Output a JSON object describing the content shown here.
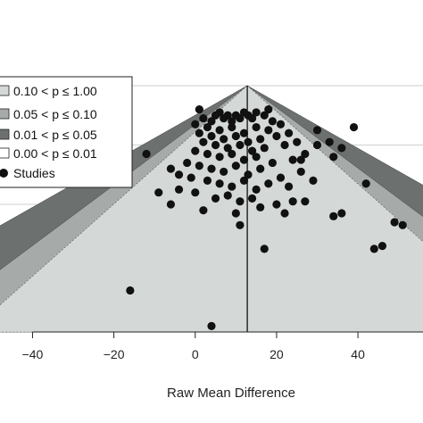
{
  "chart_data": {
    "type": "scatter",
    "subtype": "contour-enhanced funnel plot",
    "title": "",
    "xlabel": "Raw Mean Difference",
    "ylabel": "",
    "xlim": [
      -48,
      56
    ],
    "x_ticks": [
      "−40",
      "−20",
      "0",
      "20",
      "40"
    ],
    "x_tick_values": [
      -40,
      -20,
      0,
      20,
      40
    ],
    "ylim": [
      4.15,
      0
    ],
    "y_gridlines": [
      0,
      1,
      2,
      3,
      4
    ],
    "summary_estimate": 12.8,
    "grid": true,
    "legend_position": "top-left",
    "contours": [
      {
        "label": "0.10 < p ≤ 1.00",
        "color": "#d4d9d8",
        "z": 1.645
      },
      {
        "label": "0.05 < p ≤ 0.10",
        "color": "#a6abaa",
        "z": 1.96
      },
      {
        "label": "0.01 < p ≤ 0.05",
        "color": "#6c7170",
        "z": 2.576
      },
      {
        "label": "0.00 < p ≤ 0.01",
        "color": "#ffffff",
        "z": null
      }
    ],
    "points_label": "Studies",
    "points": [
      {
        "x": 0,
        "y": 0.65
      },
      {
        "x": 2,
        "y": 0.55
      },
      {
        "x": 4,
        "y": 0.6
      },
      {
        "x": 5,
        "y": 0.5
      },
      {
        "x": 6,
        "y": 0.45
      },
      {
        "x": 7,
        "y": 0.55
      },
      {
        "x": 8,
        "y": 0.5
      },
      {
        "x": 9,
        "y": 0.6
      },
      {
        "x": 10,
        "y": 0.5
      },
      {
        "x": 11,
        "y": 0.55
      },
      {
        "x": 12,
        "y": 0.45
      },
      {
        "x": 13,
        "y": 0.5
      },
      {
        "x": 14,
        "y": 0.55
      },
      {
        "x": 15,
        "y": 0.45
      },
      {
        "x": 17,
        "y": 0.5
      },
      {
        "x": 19,
        "y": 0.6
      },
      {
        "x": 3,
        "y": 0.7
      },
      {
        "x": 6,
        "y": 0.75
      },
      {
        "x": 9,
        "y": 0.7
      },
      {
        "x": 12,
        "y": 0.8
      },
      {
        "x": 15,
        "y": 0.7
      },
      {
        "x": 18,
        "y": 0.75
      },
      {
        "x": 21,
        "y": 0.65
      },
      {
        "x": 1,
        "y": 0.8
      },
      {
        "x": 4,
        "y": 0.85
      },
      {
        "x": 7,
        "y": 0.9
      },
      {
        "x": 10,
        "y": 0.85
      },
      {
        "x": 13,
        "y": 0.95
      },
      {
        "x": 16,
        "y": 0.9
      },
      {
        "x": 20,
        "y": 0.85
      },
      {
        "x": 23,
        "y": 0.8
      },
      {
        "x": 2,
        "y": 0.95
      },
      {
        "x": 5,
        "y": 1.0
      },
      {
        "x": 8,
        "y": 1.05
      },
      {
        "x": 11,
        "y": 1.0
      },
      {
        "x": 14,
        "y": 1.1
      },
      {
        "x": 17,
        "y": 1.05
      },
      {
        "x": 22,
        "y": 1.0
      },
      {
        "x": 25,
        "y": 0.95
      },
      {
        "x": 0,
        "y": 1.1
      },
      {
        "x": 3,
        "y": 1.15
      },
      {
        "x": 6,
        "y": 1.2
      },
      {
        "x": 9,
        "y": 1.15
      },
      {
        "x": 12,
        "y": 1.25
      },
      {
        "x": 15,
        "y": 1.2
      },
      {
        "x": 19,
        "y": 1.3
      },
      {
        "x": 24,
        "y": 1.25
      },
      {
        "x": 27,
        "y": 1.15
      },
      {
        "x": -2,
        "y": 1.3
      },
      {
        "x": 1,
        "y": 1.35
      },
      {
        "x": 4,
        "y": 1.4
      },
      {
        "x": 7,
        "y": 1.45
      },
      {
        "x": 10,
        "y": 1.35
      },
      {
        "x": 13,
        "y": 1.5
      },
      {
        "x": 16,
        "y": 1.4
      },
      {
        "x": 21,
        "y": 1.55
      },
      {
        "x": 26,
        "y": 1.45
      },
      {
        "x": -1,
        "y": 1.55
      },
      {
        "x": 3,
        "y": 1.6
      },
      {
        "x": 6,
        "y": 1.65
      },
      {
        "x": 9,
        "y": 1.7
      },
      {
        "x": 12,
        "y": 1.6
      },
      {
        "x": 15,
        "y": 1.75
      },
      {
        "x": 18,
        "y": 1.65
      },
      {
        "x": 23,
        "y": 1.7
      },
      {
        "x": 29,
        "y": 1.6
      },
      {
        "x": -4,
        "y": 1.75
      },
      {
        "x": 0,
        "y": 1.8
      },
      {
        "x": 5,
        "y": 1.9
      },
      {
        "x": 8,
        "y": 1.85
      },
      {
        "x": 11,
        "y": 1.95
      },
      {
        "x": 14,
        "y": 1.9
      },
      {
        "x": 20,
        "y": 2.0
      },
      {
        "x": 24,
        "y": 1.95
      },
      {
        "x": -6,
        "y": 2.0
      },
      {
        "x": 2,
        "y": 2.1
      },
      {
        "x": 10,
        "y": 2.15
      },
      {
        "x": 16,
        "y": 2.05
      },
      {
        "x": 22,
        "y": 2.15
      },
      {
        "x": 1,
        "y": 0.4
      },
      {
        "x": 18,
        "y": 0.4
      },
      {
        "x": 30,
        "y": 0.75
      },
      {
        "x": 30,
        "y": 1.0
      },
      {
        "x": 33,
        "y": 0.95
      },
      {
        "x": 34,
        "y": 1.2
      },
      {
        "x": 36,
        "y": 1.05
      },
      {
        "x": 39,
        "y": 0.7
      },
      {
        "x": 42,
        "y": 1.65
      },
      {
        "x": -12,
        "y": 1.15
      },
      {
        "x": -6,
        "y": 1.4
      },
      {
        "x": -9,
        "y": 1.8
      },
      {
        "x": -4,
        "y": 1.5
      },
      {
        "x": 34,
        "y": 2.2
      },
      {
        "x": 36,
        "y": 2.15
      },
      {
        "x": 44,
        "y": 2.75
      },
      {
        "x": 46,
        "y": 2.7
      },
      {
        "x": 49,
        "y": 2.3
      },
      {
        "x": 51,
        "y": 2.35
      },
      {
        "x": 17,
        "y": 2.75
      },
      {
        "x": 11,
        "y": 2.35
      },
      {
        "x": -16,
        "y": 3.45
      },
      {
        "x": 4,
        "y": 4.05
      },
      {
        "x": 26,
        "y": 1.25
      },
      {
        "x": 27,
        "y": 1.95
      }
    ]
  }
}
